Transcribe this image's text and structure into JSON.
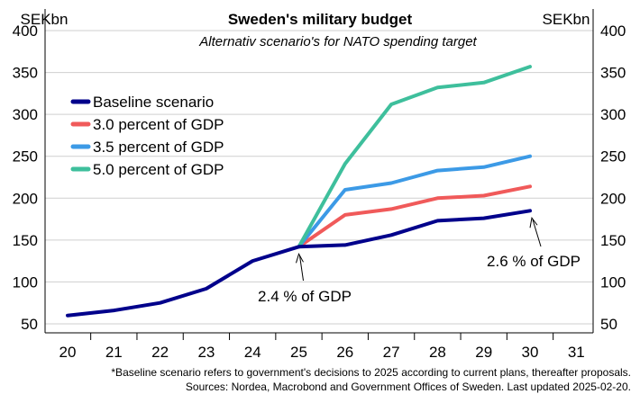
{
  "chart_data": {
    "type": "line",
    "title": "Sweden's military budget",
    "subtitle": "Alternativ scenario's for NATO spending target",
    "y_unit_left": "SEKbn",
    "y_unit_right": "SEKbn",
    "x": [
      "20",
      "21",
      "22",
      "23",
      "24",
      "25",
      "26",
      "27",
      "28",
      "29",
      "30",
      "31"
    ],
    "ylim": [
      40,
      410
    ],
    "yticks": [
      50,
      100,
      150,
      200,
      250,
      300,
      350,
      400
    ],
    "series": [
      {
        "name": "Baseline scenario",
        "color": "#00008b",
        "x": [
          20,
          21,
          22,
          23,
          24,
          25,
          26,
          27,
          28,
          29,
          30
        ],
        "values": [
          60,
          66,
          75,
          92,
          125,
          142,
          144,
          156,
          173,
          176,
          185
        ]
      },
      {
        "name": "3.0 percent of GDP",
        "color": "#f05a5a",
        "x": [
          25,
          26,
          27,
          28,
          29,
          30
        ],
        "values": [
          142,
          180,
          187,
          200,
          203,
          214
        ]
      },
      {
        "name": "3.5 percent of GDP",
        "color": "#3c9ae6",
        "x": [
          25,
          26,
          27,
          28,
          29,
          30
        ],
        "values": [
          142,
          210,
          218,
          233,
          237,
          250
        ]
      },
      {
        "name": "5.0 percent of GDP",
        "color": "#3ebf9c",
        "x": [
          25,
          26,
          27,
          28,
          29,
          30
        ],
        "values": [
          142,
          241,
          312,
          332,
          338,
          357
        ]
      }
    ],
    "annotations": [
      {
        "text": "2.4 % of GDP",
        "x": 25,
        "y": 142
      },
      {
        "text": "2.6 % of GDP",
        "x": 30,
        "y": 185
      }
    ],
    "legend_position": "top-left",
    "grid": "horizontal",
    "footnote_line1": "*Baseline scenario refers to government's decisions to 2025 according to current plans, thereafter proposals.",
    "footnote_line2": "Sources: Nordea, Macrobond and Government Offices of Sweden. Last updated 2025-02-20."
  }
}
